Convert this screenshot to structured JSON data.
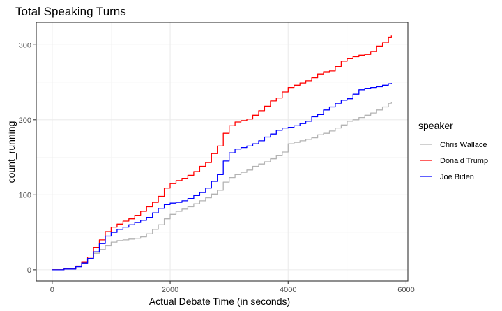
{
  "chart_data": {
    "type": "line",
    "title": "Total Speaking Turns",
    "xlabel": "Actual Debate Time (in seconds)",
    "ylabel": "count_running",
    "xlim": [
      -270,
      6030
    ],
    "ylim": [
      -15,
      330
    ],
    "x_ticks": [
      0,
      2000,
      4000,
      6000
    ],
    "y_ticks": [
      0,
      100,
      200,
      300
    ],
    "x_tick_labels": [
      "0",
      "2000",
      "4000",
      "6000"
    ],
    "y_tick_labels": [
      "0",
      "100",
      "200",
      "300"
    ],
    "grid": true,
    "legend_title": "speaker",
    "legend_position": "right",
    "series": [
      {
        "name": "Chris Wallace",
        "color": "#b3b3b3",
        "points": [
          [
            0,
            0
          ],
          [
            200,
            1
          ],
          [
            400,
            4
          ],
          [
            500,
            8
          ],
          [
            600,
            15
          ],
          [
            700,
            22
          ],
          [
            800,
            27
          ],
          [
            900,
            32
          ],
          [
            1000,
            37
          ],
          [
            1100,
            39
          ],
          [
            1200,
            40
          ],
          [
            1300,
            41
          ],
          [
            1400,
            42
          ],
          [
            1500,
            44
          ],
          [
            1600,
            48
          ],
          [
            1700,
            54
          ],
          [
            1800,
            60
          ],
          [
            1900,
            68
          ],
          [
            2000,
            74
          ],
          [
            2100,
            78
          ],
          [
            2200,
            81
          ],
          [
            2300,
            84
          ],
          [
            2400,
            88
          ],
          [
            2500,
            92
          ],
          [
            2600,
            96
          ],
          [
            2700,
            101
          ],
          [
            2800,
            106
          ],
          [
            2900,
            117
          ],
          [
            3000,
            123
          ],
          [
            3100,
            127
          ],
          [
            3200,
            130
          ],
          [
            3300,
            133
          ],
          [
            3400,
            138
          ],
          [
            3500,
            141
          ],
          [
            3600,
            144
          ],
          [
            3700,
            148
          ],
          [
            3800,
            152
          ],
          [
            3900,
            157
          ],
          [
            4000,
            168
          ],
          [
            4100,
            170
          ],
          [
            4200,
            172
          ],
          [
            4300,
            174
          ],
          [
            4400,
            176
          ],
          [
            4500,
            180
          ],
          [
            4600,
            182
          ],
          [
            4700,
            185
          ],
          [
            4800,
            189
          ],
          [
            4900,
            193
          ],
          [
            5000,
            198
          ],
          [
            5100,
            200
          ],
          [
            5200,
            203
          ],
          [
            5300,
            206
          ],
          [
            5400,
            209
          ],
          [
            5500,
            213
          ],
          [
            5600,
            217
          ],
          [
            5700,
            222
          ],
          [
            5750,
            224
          ]
        ]
      },
      {
        "name": "Donald Trump",
        "color": "#ff0000",
        "points": [
          [
            0,
            0
          ],
          [
            200,
            1
          ],
          [
            400,
            5
          ],
          [
            500,
            10
          ],
          [
            600,
            17
          ],
          [
            700,
            30
          ],
          [
            800,
            40
          ],
          [
            900,
            51
          ],
          [
            1000,
            57
          ],
          [
            1100,
            61
          ],
          [
            1200,
            65
          ],
          [
            1300,
            68
          ],
          [
            1400,
            72
          ],
          [
            1500,
            78
          ],
          [
            1600,
            84
          ],
          [
            1700,
            90
          ],
          [
            1800,
            98
          ],
          [
            1900,
            109
          ],
          [
            2000,
            115
          ],
          [
            2100,
            119
          ],
          [
            2200,
            122
          ],
          [
            2300,
            126
          ],
          [
            2400,
            131
          ],
          [
            2500,
            138
          ],
          [
            2600,
            143
          ],
          [
            2700,
            155
          ],
          [
            2800,
            165
          ],
          [
            2900,
            182
          ],
          [
            3000,
            192
          ],
          [
            3100,
            197
          ],
          [
            3200,
            199
          ],
          [
            3300,
            201
          ],
          [
            3400,
            206
          ],
          [
            3500,
            212
          ],
          [
            3600,
            218
          ],
          [
            3700,
            225
          ],
          [
            3800,
            229
          ],
          [
            3900,
            237
          ],
          [
            4000,
            243
          ],
          [
            4100,
            246
          ],
          [
            4200,
            249
          ],
          [
            4300,
            252
          ],
          [
            4400,
            256
          ],
          [
            4500,
            261
          ],
          [
            4600,
            264
          ],
          [
            4700,
            265
          ],
          [
            4800,
            271
          ],
          [
            4900,
            278
          ],
          [
            5000,
            282
          ],
          [
            5100,
            284
          ],
          [
            5200,
            286
          ],
          [
            5300,
            287
          ],
          [
            5400,
            291
          ],
          [
            5500,
            298
          ],
          [
            5600,
            303
          ],
          [
            5700,
            310
          ],
          [
            5750,
            313
          ]
        ]
      },
      {
        "name": "Joe Biden",
        "color": "#0000ff",
        "points": [
          [
            0,
            0
          ],
          [
            200,
            1
          ],
          [
            400,
            4
          ],
          [
            500,
            9
          ],
          [
            600,
            15
          ],
          [
            700,
            24
          ],
          [
            800,
            35
          ],
          [
            900,
            45
          ],
          [
            1000,
            50
          ],
          [
            1100,
            54
          ],
          [
            1200,
            57
          ],
          [
            1300,
            60
          ],
          [
            1400,
            63
          ],
          [
            1500,
            66
          ],
          [
            1600,
            70
          ],
          [
            1700,
            76
          ],
          [
            1800,
            82
          ],
          [
            1900,
            87
          ],
          [
            2000,
            89
          ],
          [
            2100,
            90
          ],
          [
            2200,
            92
          ],
          [
            2300,
            95
          ],
          [
            2400,
            99
          ],
          [
            2500,
            103
          ],
          [
            2600,
            109
          ],
          [
            2700,
            118
          ],
          [
            2800,
            127
          ],
          [
            2900,
            145
          ],
          [
            3000,
            156
          ],
          [
            3100,
            161
          ],
          [
            3200,
            163
          ],
          [
            3300,
            165
          ],
          [
            3400,
            168
          ],
          [
            3500,
            172
          ],
          [
            3600,
            177
          ],
          [
            3700,
            181
          ],
          [
            3800,
            186
          ],
          [
            3900,
            189
          ],
          [
            4000,
            190
          ],
          [
            4100,
            192
          ],
          [
            4200,
            195
          ],
          [
            4300,
            198
          ],
          [
            4400,
            204
          ],
          [
            4500,
            207
          ],
          [
            4600,
            213
          ],
          [
            4700,
            217
          ],
          [
            4800,
            222
          ],
          [
            4900,
            226
          ],
          [
            5000,
            228
          ],
          [
            5100,
            234
          ],
          [
            5200,
            240
          ],
          [
            5300,
            242
          ],
          [
            5400,
            243
          ],
          [
            5500,
            244
          ],
          [
            5600,
            246
          ],
          [
            5700,
            248
          ],
          [
            5750,
            249
          ]
        ]
      }
    ]
  }
}
